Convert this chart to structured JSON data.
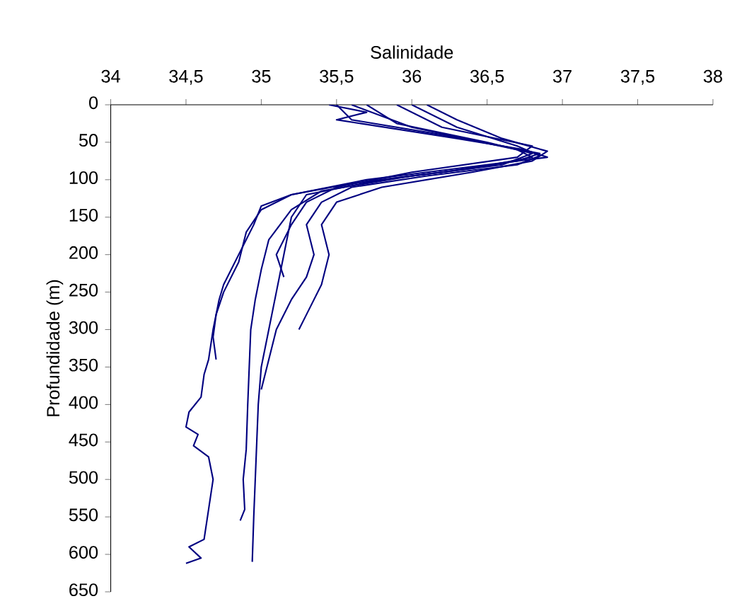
{
  "chart_data": {
    "type": "line",
    "xlabel": "Salinidade",
    "ylabel": "Profundidade (m)",
    "xlim": [
      34,
      38
    ],
    "ylim": [
      650,
      0
    ],
    "xticks": [
      34,
      {
        "value": 34.5,
        "label": "34,5"
      },
      35,
      {
        "value": 35.5,
        "label": "35,5"
      },
      36,
      {
        "value": 36.5,
        "label": "36,5"
      },
      37,
      {
        "value": 37.5,
        "label": "37,5"
      },
      38
    ],
    "yticks": [
      0,
      50,
      100,
      150,
      200,
      250,
      300,
      350,
      400,
      450,
      500,
      550,
      600,
      650
    ],
    "grid": false,
    "marker": "none",
    "line_style": "solid",
    "series": [
      {
        "color": "#000080",
        "x": [
          35.5,
          35.6,
          36.2,
          36.6,
          36.85,
          36.7,
          36.2,
          35.6,
          35.2,
          35.0,
          34.95,
          34.85,
          34.75,
          34.72,
          34.68,
          34.65,
          34.62,
          34.6,
          34.52,
          34.5,
          34.58,
          34.55,
          34.65,
          34.68,
          34.65,
          34.62,
          34.52,
          34.6,
          34.5
        ],
        "values": [
          0,
          20,
          40,
          55,
          65,
          75,
          90,
          105,
          120,
          135,
          160,
          200,
          240,
          260,
          300,
          340,
          360,
          390,
          410,
          430,
          440,
          455,
          470,
          500,
          540,
          580,
          590,
          605,
          612
        ]
      },
      {
        "color": "#000080",
        "x": [
          35.6,
          36.0,
          36.7,
          36.8,
          36.4,
          35.8,
          35.3,
          35.2,
          35.15,
          35.1,
          35.05,
          35.0,
          34.98,
          34.97,
          34.96,
          34.95,
          34.94
        ],
        "values": [
          0,
          30,
          60,
          70,
          85,
          100,
          120,
          150,
          200,
          250,
          300,
          350,
          400,
          450,
          500,
          550,
          610
        ]
      },
      {
        "color": "#000080",
        "x": [
          35.7,
          35.9,
          36.5,
          36.8,
          36.6,
          36.0,
          35.4,
          35.2,
          35.05,
          35.0,
          34.96,
          34.93,
          34.92,
          34.91,
          34.9,
          34.88,
          34.89,
          34.86
        ],
        "values": [
          0,
          25,
          50,
          65,
          80,
          95,
          115,
          140,
          180,
          220,
          260,
          300,
          350,
          400,
          460,
          500,
          540,
          555
        ]
      },
      {
        "color": "#000080",
        "x": [
          35.45,
          35.7,
          35.5,
          36.3,
          36.75,
          36.9,
          36.3,
          35.7,
          35.2,
          35.0,
          34.9,
          34.85,
          34.75,
          34.7,
          34.68,
          34.7
        ],
        "values": [
          0,
          10,
          20,
          45,
          60,
          70,
          85,
          100,
          120,
          140,
          170,
          210,
          250,
          280,
          310,
          340
        ]
      },
      {
        "color": "#000080",
        "x": [
          36.0,
          36.3,
          36.7,
          36.85,
          36.7,
          36.1,
          35.6,
          35.4,
          35.3,
          35.35,
          35.3,
          35.2,
          35.1,
          35.05,
          35.0
        ],
        "values": [
          0,
          30,
          55,
          68,
          80,
          95,
          110,
          130,
          160,
          200,
          230,
          260,
          300,
          340,
          380
        ]
      },
      {
        "color": "#000080",
        "x": [
          36.1,
          36.3,
          36.6,
          36.9,
          36.8,
          36.4,
          35.8,
          35.5,
          35.4,
          35.45,
          35.4,
          35.3,
          35.25
        ],
        "values": [
          0,
          20,
          45,
          62,
          75,
          90,
          110,
          130,
          160,
          200,
          240,
          280,
          300
        ]
      },
      {
        "color": "#000080",
        "x": [
          35.9,
          36.2,
          36.8,
          36.7,
          36.0,
          35.5,
          35.3,
          35.2,
          35.1,
          35.15
        ],
        "values": [
          0,
          30,
          55,
          70,
          90,
          110,
          130,
          160,
          200,
          230
        ]
      }
    ]
  }
}
